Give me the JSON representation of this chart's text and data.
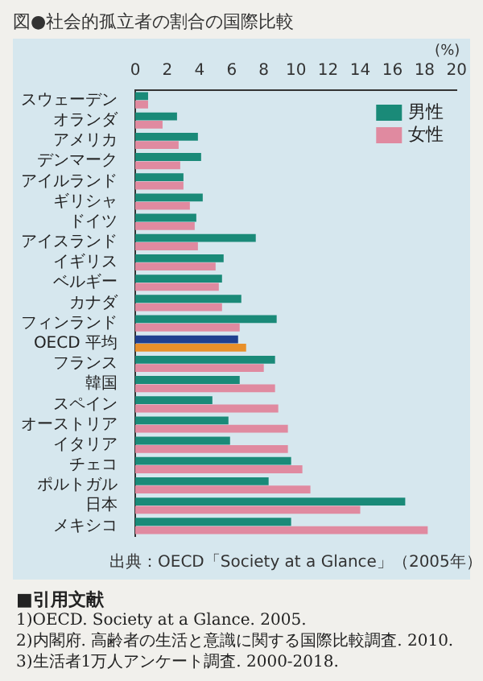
{
  "chart_data": {
    "type": "bar",
    "orientation": "horizontal",
    "title": "図●社会的孤立者の割合の国際比較",
    "xlabel": "(%)",
    "categories": [
      "スウェーデン",
      "オランダ",
      "アメリカ",
      "デンマーク",
      "アイルランド",
      "ギリシャ",
      "ドイツ",
      "アイスランド",
      "イギリス",
      "ベルギー",
      "カナダ",
      "フィンランド",
      "OECD 平均",
      "フランス",
      "韓国",
      "スペイン",
      "オーストリア",
      "イタリア",
      "チェコ",
      "ポルトガル",
      "日本",
      "メキシコ"
    ],
    "series": [
      {
        "name": "男性",
        "color": "#1a8a78",
        "colors": [
          "#1a8a78",
          "#1a8a78",
          "#1a8a78",
          "#1a8a78",
          "#1a8a78",
          "#1a8a78",
          "#1a8a78",
          "#1a8a78",
          "#1a8a78",
          "#1a8a78",
          "#1a8a78",
          "#1a8a78",
          "#1f3f8f",
          "#1a8a78",
          "#1a8a78",
          "#1a8a78",
          "#1a8a78",
          "#1a8a78",
          "#1a8a78",
          "#1a8a78",
          "#1a8a78",
          "#1a8a78"
        ],
        "values": [
          0.8,
          2.6,
          3.9,
          4.1,
          3.0,
          4.2,
          3.8,
          7.5,
          5.5,
          5.4,
          6.6,
          8.8,
          6.4,
          8.7,
          6.5,
          4.8,
          5.8,
          5.9,
          9.7,
          8.3,
          16.8,
          9.7
        ]
      },
      {
        "name": "女性",
        "color": "#e08aa0",
        "colors": [
          "#e08aa0",
          "#e08aa0",
          "#e08aa0",
          "#e08aa0",
          "#e08aa0",
          "#e08aa0",
          "#e08aa0",
          "#e08aa0",
          "#e08aa0",
          "#e08aa0",
          "#e08aa0",
          "#e08aa0",
          "#e8902a",
          "#e08aa0",
          "#e08aa0",
          "#e08aa0",
          "#e08aa0",
          "#e08aa0",
          "#e08aa0",
          "#e08aa0",
          "#e08aa0",
          "#e08aa0"
        ],
        "values": [
          0.8,
          1.7,
          2.7,
          2.8,
          3.0,
          3.4,
          3.7,
          3.9,
          5.0,
          5.2,
          5.4,
          6.5,
          6.9,
          8.0,
          8.7,
          8.9,
          9.5,
          9.5,
          10.4,
          10.9,
          14.0,
          18.2
        ]
      }
    ],
    "xlim": [
      0,
      20
    ],
    "xticks": [
      0,
      2,
      4,
      6,
      8,
      10,
      12,
      14,
      16,
      18,
      20
    ],
    "grid": false,
    "legend": "top right",
    "annotations": [
      "出典：OECD「Society at a Glance」（2005年）",
      "■引用文献",
      "1)OECD. Society at a Glance. 2005.",
      "2)内閣府. 高齢者の生活と意識に関する国際比較調査. 2010.",
      "3)生活者1万人アンケート調査. 2000-2018."
    ]
  }
}
